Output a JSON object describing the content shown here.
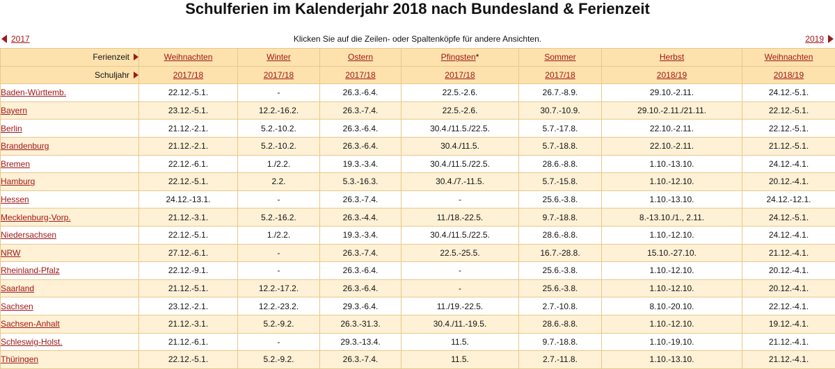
{
  "title": "Schulferien im Kalenderjahr 2018 nach Bundesland & Ferienzeit",
  "nav": {
    "prev_year": "2017",
    "next_year": "2019",
    "hint": "Klicken Sie auf die Zeilen- oder Spaltenköpfe für andere Ansichten."
  },
  "header": {
    "ferienzeit_label": "Ferienzeit",
    "schuljahr_label": "Schuljahr",
    "columns": [
      {
        "name": "Weihnachten",
        "year": "2017/18"
      },
      {
        "name": "Winter",
        "year": "2017/18"
      },
      {
        "name": "Ostern",
        "year": "2017/18"
      },
      {
        "name": "Pfingsten",
        "year": "2017/18",
        "note": "*"
      },
      {
        "name": "Sommer",
        "year": "2017/18"
      },
      {
        "name": "Herbst",
        "year": "2018/19"
      },
      {
        "name": "Weihnachten",
        "year": "2018/19"
      }
    ]
  },
  "rows": [
    {
      "state": "Baden-Württemb.",
      "cells": [
        "22.12.-5.1.",
        "-",
        "26.3.-6.4.",
        "22.5.-2.6.",
        "26.7.-8.9.",
        "29.10.-2.11.",
        "24.12.-5.1."
      ]
    },
    {
      "state": "Bayern",
      "cells": [
        "23.12.-5.1.",
        "12.2.-16.2.",
        "26.3.-7.4.",
        "22.5.-2.6.",
        "30.7.-10.9.",
        "29.10.-2.11./21.11.",
        "22.12.-5.1."
      ]
    },
    {
      "state": "Berlin",
      "cells": [
        "21.12.-2.1.",
        "5.2.-10.2.",
        "26.3.-6.4.",
        "30.4./11.5./22.5.",
        "5.7.-17.8.",
        "22.10.-2.11.",
        "22.12.-5.1."
      ]
    },
    {
      "state": "Brandenburg",
      "cells": [
        "21.12.-2.1.",
        "5.2.-10.2.",
        "26.3.-6.4.",
        "30.4./11.5.",
        "5.7.-18.8.",
        "22.10.-2.11.",
        "21.12.-5.1."
      ]
    },
    {
      "state": "Bremen",
      "cells": [
        "22.12.-6.1.",
        "1./2.2.",
        "19.3.-3.4.",
        "30.4./11.5./22.5.",
        "28.6.-8.8.",
        "1.10.-13.10.",
        "24.12.-4.1."
      ]
    },
    {
      "state": "Hamburg",
      "cells": [
        "22.12.-5.1.",
        "2.2.",
        "5.3.-16.3.",
        "30.4./7.-11.5.",
        "5.7.-15.8.",
        "1.10.-12.10.",
        "20.12.-4.1."
      ]
    },
    {
      "state": "Hessen",
      "cells": [
        "24.12.-13.1.",
        "-",
        "26.3.-7.4.",
        "-",
        "25.6.-3.8.",
        "1.10.-13.10.",
        "24.12.-12.1."
      ]
    },
    {
      "state": "Mecklenburg-Vorp.",
      "cells": [
        "21.12.-3.1.",
        "5.2.-16.2.",
        "26.3.-4.4.",
        "11./18.-22.5.",
        "9.7.-18.8.",
        "8.-13.10./1., 2.11.",
        "24.12.-5.1."
      ]
    },
    {
      "state": "Niedersachsen",
      "cells": [
        "22.12.-5.1.",
        "1./2.2.",
        "19.3.-3.4.",
        "30.4./11.5./22.5.",
        "28.6.-8.8.",
        "1.10.-12.10.",
        "24.12.-4.1."
      ]
    },
    {
      "state": "NRW",
      "cells": [
        "27.12.-6.1.",
        "-",
        "26.3.-7.4.",
        "22.5.-25.5.",
        "16.7.-28.8.",
        "15.10.-27.10.",
        "21.12.-4.1."
      ]
    },
    {
      "state": "Rheinland-Pfalz",
      "cells": [
        "22.12.-9.1.",
        "-",
        "26.3.-6.4.",
        "-",
        "25.6.-3.8.",
        "1.10.-12.10.",
        "20.12.-4.1."
      ]
    },
    {
      "state": "Saarland",
      "cells": [
        "21.12.-5.1.",
        "12.2.-17.2.",
        "26.3.-6.4.",
        "-",
        "25.6.-3.8.",
        "1.10.-12.10.",
        "20.12.-4.1."
      ]
    },
    {
      "state": "Sachsen",
      "cells": [
        "23.12.-2.1.",
        "12.2.-23.2.",
        "29.3.-6.4.",
        "11./19.-22.5.",
        "2.7.-10.8.",
        "8.10.-20.10.",
        "22.12.-4.1."
      ]
    },
    {
      "state": "Sachsen-Anhalt",
      "cells": [
        "21.12.-3.1.",
        "5.2.-9.2.",
        "26.3.-31.3.",
        "30.4./11.-19.5.",
        "28.6.-8.8.",
        "1.10.-12.10.",
        "19.12.-4.1."
      ]
    },
    {
      "state": "Schleswig-Holst.",
      "cells": [
        "21.12.-6.1.",
        "-",
        "29.3.-13.4.",
        "11.5.",
        "9.7.-18.8.",
        "1.10.-19.10.",
        "21.12.-4.1."
      ]
    },
    {
      "state": "Thüringen",
      "cells": [
        "22.12.-5.1.",
        "5.2.-9.2.",
        "26.3.-7.4.",
        "11.5.",
        "2.7.-11.8.",
        "1.10.-13.10.",
        "21.12.-4.1."
      ]
    }
  ]
}
